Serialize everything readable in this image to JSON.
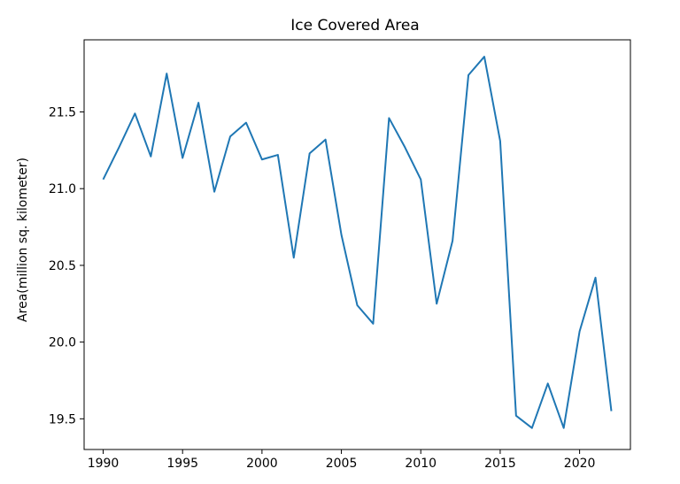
{
  "chart_data": {
    "type": "line",
    "title": "Ice Covered Area",
    "xlabel": "",
    "ylabel": "Area(million sq. kilometer)",
    "xlim": [
      1988.8,
      2023.2
    ],
    "ylim": [
      19.3,
      21.97
    ],
    "xticks": [
      1990,
      1995,
      2000,
      2005,
      2010,
      2015,
      2020
    ],
    "yticks": [
      19.5,
      20.0,
      20.5,
      21.0,
      21.5
    ],
    "xtick_labels": [
      "1990",
      "1995",
      "2000",
      "2005",
      "2010",
      "2015",
      "2020"
    ],
    "ytick_labels": [
      "19.5",
      "20.0",
      "20.5",
      "21.0",
      "21.5"
    ],
    "grid": false,
    "line_color": "#1f77b4",
    "series": [
      {
        "x": [
          1990,
          1991,
          1992,
          1993,
          1994,
          1995,
          1996,
          1997,
          1998,
          1999,
          2000,
          2001,
          2002,
          2003,
          2004,
          2005,
          2006,
          2007,
          2008,
          2009,
          2010,
          2011,
          2012,
          2013,
          2014,
          2015,
          2016,
          2017,
          2018,
          2019,
          2020,
          2021,
          2022
        ],
        "values": [
          21.06,
          21.27,
          21.49,
          21.21,
          21.75,
          21.2,
          21.56,
          20.98,
          21.34,
          21.43,
          21.19,
          21.22,
          20.55,
          21.23,
          21.32,
          20.7,
          20.24,
          20.12,
          21.46,
          21.27,
          21.06,
          20.25,
          20.66,
          21.74,
          21.86,
          21.31,
          19.52,
          19.44,
          19.73,
          19.44,
          20.07,
          20.42,
          19.55
        ]
      }
    ]
  }
}
